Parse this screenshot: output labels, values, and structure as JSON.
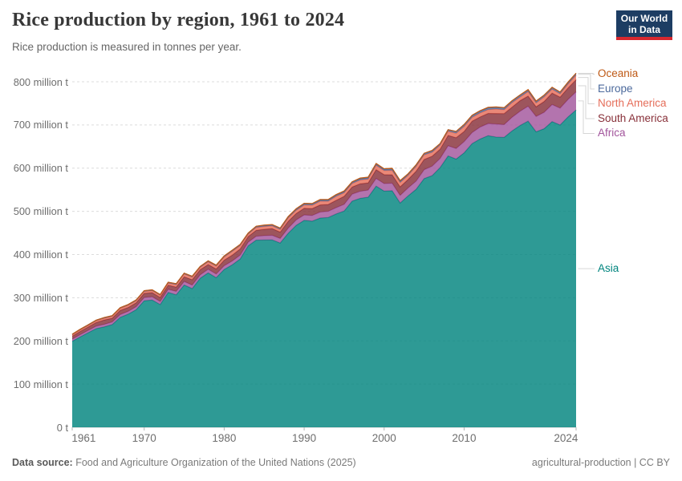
{
  "header": {
    "title": "Rice production by region, 1961 to 2024",
    "subtitle": "Rice production is measured in tonnes per year.",
    "logo": {
      "line1": "Our World",
      "line2": "in Data",
      "bg_color": "#1d3d63",
      "accent_color": "#d7282f"
    }
  },
  "footer": {
    "source_label": "Data source:",
    "source_text": " Food and Agriculture Organization of the United Nations (2025)",
    "note_right": "agricultural-production | CC BY"
  },
  "chart_data": {
    "type": "area",
    "stacked": true,
    "title": "Rice production by region, 1961 to 2024",
    "ylabel": "",
    "xlabel": "",
    "unit": "tonnes per year (millions)",
    "grid": "dashed-horizontal",
    "legend_position": "right",
    "ylim": [
      0,
      830
    ],
    "xlim": [
      1961,
      2024
    ],
    "colors": {
      "asia": "#00847E",
      "africa": "#A2559C",
      "south_america": "#883039",
      "north_america": "#E56E5A",
      "europe": "#4C6A9C",
      "oceania": "#BE5915",
      "grid": "#dcdcdc",
      "axis": "#c8c8c8",
      "connector": "#d6d6d6"
    },
    "y_ticks": [
      {
        "value": 0,
        "label": "0 t"
      },
      {
        "value": 100,
        "label": "100 million t"
      },
      {
        "value": 200,
        "label": "200 million t"
      },
      {
        "value": 300,
        "label": "300 million t"
      },
      {
        "value": 400,
        "label": "400 million t"
      },
      {
        "value": 500,
        "label": "500 million t"
      },
      {
        "value": 600,
        "label": "600 million t"
      },
      {
        "value": 700,
        "label": "700 million t"
      },
      {
        "value": 800,
        "label": "800 million t"
      }
    ],
    "x_label_ticks": [
      1961,
      1970,
      1980,
      1990,
      2000,
      2010,
      2024
    ],
    "years": [
      1961,
      1962,
      1963,
      1964,
      1965,
      1966,
      1967,
      1968,
      1969,
      1970,
      1971,
      1972,
      1973,
      1974,
      1975,
      1976,
      1977,
      1978,
      1979,
      1980,
      1981,
      1982,
      1983,
      1984,
      1985,
      1986,
      1987,
      1988,
      1989,
      1990,
      1991,
      1992,
      1993,
      1994,
      1995,
      1996,
      1997,
      1998,
      1999,
      2000,
      2001,
      2002,
      2003,
      2004,
      2005,
      2006,
      2007,
      2008,
      2009,
      2010,
      2011,
      2012,
      2013,
      2014,
      2015,
      2016,
      2017,
      2018,
      2019,
      2020,
      2021,
      2022,
      2023,
      2024
    ],
    "series": [
      {
        "name": "Asia",
        "color": "#00847E",
        "values": [
          199.2,
          209.3,
          219.0,
          228.5,
          232.5,
          237.9,
          254.6,
          262.0,
          272.4,
          293.0,
          294.7,
          284.2,
          312.3,
          306.8,
          329.5,
          321.2,
          345.1,
          357.6,
          346.4,
          365.5,
          376.1,
          389.7,
          420.2,
          433.3,
          433.7,
          433.9,
          426.6,
          449.2,
          467.6,
          479.2,
          477.3,
          484.4,
          485.7,
          494.0,
          500.7,
          523.6,
          530.1,
          532.8,
          558.4,
          546.8,
          547.7,
          519.3,
          535.9,
          551.0,
          575.8,
          582.7,
          601.4,
          628.3,
          621.0,
          635.4,
          656.9,
          667.5,
          675.2,
          672.0,
          671.3,
          686.4,
          698.8,
          708.9,
          684.2,
          691.3,
          707.8,
          700.0,
          718.7,
          734.7
        ]
      },
      {
        "name": "Africa",
        "color": "#A2559C",
        "values": [
          4.9,
          5.1,
          5.3,
          5.6,
          5.8,
          5.9,
          6.4,
          6.5,
          6.8,
          7.3,
          7.5,
          7.2,
          7.1,
          7.8,
          8.0,
          8.1,
          7.9,
          8.2,
          8.5,
          8.6,
          8.9,
          8.9,
          8.4,
          9.0,
          10.0,
          10.6,
          10.6,
          11.8,
          12.4,
          12.5,
          13.2,
          13.9,
          14.2,
          14.5,
          15.5,
          16.2,
          16.2,
          16.5,
          17.6,
          17.4,
          17.5,
          17.7,
          18.5,
          19.0,
          20.5,
          21.9,
          21.1,
          23.5,
          24.5,
          26.0,
          25.5,
          27.6,
          28.0,
          30.0,
          29.5,
          31.5,
          33.0,
          34.5,
          35.5,
          38.0,
          39.5,
          39.0,
          40.5,
          42.0
        ]
      },
      {
        "name": "South America",
        "color": "#883039",
        "values": [
          6.9,
          7.7,
          7.9,
          8.7,
          10.2,
          8.8,
          9.7,
          9.0,
          9.1,
          9.8,
          9.6,
          9.4,
          9.7,
          10.0,
          11.0,
          12.4,
          12.0,
          11.0,
          11.6,
          13.0,
          13.5,
          14.5,
          13.0,
          13.8,
          14.8,
          15.5,
          14.8,
          15.8,
          15.0,
          15.5,
          16.0,
          16.5,
          16.0,
          17.0,
          18.5,
          16.5,
          17.5,
          16.5,
          20.5,
          20.7,
          19.5,
          19.8,
          19.5,
          23.0,
          24.0,
          23.0,
          21.5,
          24.0,
          25.0,
          23.5,
          26.5,
          23.5,
          23.5,
          24.5,
          25.5,
          23.5,
          24.5,
          23.5,
          22.5,
          25.0,
          26.5,
          25.5,
          26.5,
          28.0
        ]
      },
      {
        "name": "North America",
        "color": "#E56E5A",
        "values": [
          2.9,
          3.2,
          3.4,
          3.6,
          3.8,
          4.1,
          4.4,
          4.9,
          4.6,
          4.2,
          4.4,
          4.5,
          4.6,
          5.6,
          6.2,
          5.8,
          5.0,
          6.2,
          6.4,
          7.0,
          8.7,
          7.5,
          5.4,
          6.6,
          6.5,
          6.4,
          6.1,
          7.6,
          7.4,
          7.5,
          7.7,
          8.6,
          7.4,
          9.3,
          8.3,
          8.2,
          8.7,
          8.9,
          9.9,
          9.5,
          10.1,
          9.9,
          9.5,
          10.9,
          10.4,
          9.1,
          9.3,
          9.5,
          10.3,
          11.6,
          8.7,
          9.3,
          8.9,
          10.4,
          9.0,
          10.4,
          8.4,
          10.4,
          8.7,
          10.6,
          9.1,
          7.5,
          9.2,
          10.5
        ]
      },
      {
        "name": "Europe",
        "color": "#4C6A9C",
        "values": [
          1.5,
          1.5,
          1.6,
          1.6,
          1.6,
          1.7,
          1.7,
          1.7,
          1.8,
          1.8,
          1.8,
          1.8,
          1.9,
          1.9,
          1.9,
          1.9,
          2.0,
          2.0,
          2.0,
          2.1,
          2.1,
          2.2,
          2.2,
          2.3,
          2.4,
          2.4,
          2.5,
          2.6,
          2.8,
          2.9,
          2.9,
          2.9,
          2.9,
          3.0,
          3.0,
          3.0,
          3.1,
          3.1,
          3.2,
          3.2,
          3.2,
          3.3,
          3.3,
          3.4,
          3.4,
          3.5,
          3.5,
          3.6,
          4.2,
          4.4,
          4.3,
          4.2,
          4.1,
          4.1,
          4.1,
          4.1,
          4.2,
          4.1,
          4.1,
          4.0,
          4.0,
          3.9,
          3.9,
          4.0
        ]
      },
      {
        "name": "Oceania",
        "color": "#BE5915",
        "values": [
          0.2,
          0.2,
          0.2,
          0.2,
          0.2,
          0.2,
          0.2,
          0.3,
          0.3,
          0.3,
          0.3,
          0.3,
          0.3,
          0.4,
          0.4,
          0.4,
          0.5,
          0.5,
          0.6,
          0.7,
          0.7,
          0.7,
          0.6,
          0.6,
          0.8,
          0.7,
          0.8,
          0.9,
          1.0,
          1.0,
          1.0,
          1.1,
          1.2,
          1.1,
          1.2,
          1.0,
          1.4,
          1.4,
          1.4,
          1.1,
          1.8,
          1.3,
          0.4,
          0.6,
          0.3,
          1.0,
          0.2,
          0.1,
          0.1,
          0.2,
          0.7,
          0.9,
          1.2,
          0.8,
          0.7,
          0.3,
          0.8,
          0.6,
          0.5,
          0.1,
          0.4,
          0.5,
          0.6,
          0.8
        ]
      }
    ],
    "legend_top_to_bottom": [
      "Oceania",
      "Europe",
      "North America",
      "South America",
      "Africa",
      "Asia"
    ]
  }
}
